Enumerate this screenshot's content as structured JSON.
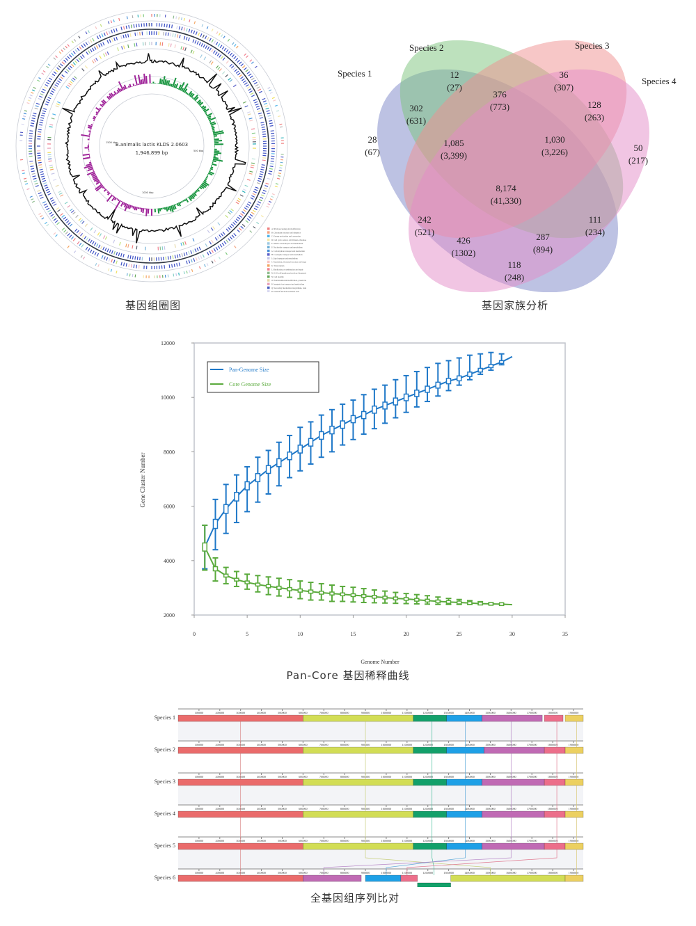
{
  "captions": {
    "circos": "基因组圈图",
    "venn": "基因家族分析",
    "pancore": "Pan-Core 基因稀释曲线",
    "alignment": "全基因组序列比对"
  },
  "circos": {
    "center_title": "B.animalis lactis KLDS 2.0603",
    "center_size": "1,946,899 bp",
    "ticks": [
      "500 kbp",
      "1000 kbp",
      "1500 kbp"
    ],
    "colors": {
      "gc_skew_plus": "#1a9641",
      "gc_skew_minus": "#a0269a",
      "gc_content": "#111111",
      "cds": "#3b4fc4"
    },
    "top_legend": [
      {
        "label": "CDS",
        "color": "#6f7fd6"
      },
      {
        "label": "tRNA",
        "color": "#e07a7a"
      },
      {
        "label": "rRNA",
        "color": "#d97bd0"
      },
      {
        "label": "ORFs",
        "color": "#9aa0a6"
      },
      {
        "label": "GC content",
        "color": "#111111"
      },
      {
        "label": "GC skew+",
        "color": "#1a9641"
      },
      {
        "label": "GC skew-",
        "color": "#a0269a"
      }
    ],
    "cog_legend": [
      {
        "label": "A: RNA processing and modification",
        "color": "#f08080"
      },
      {
        "label": "B: Chromatin structure and dynamics",
        "color": "#f4a582"
      },
      {
        "label": "C: Energy production and conversion",
        "color": "#4fb3e8"
      },
      {
        "label": "D: Cell cycle control, cell division, chromosome partitioning",
        "color": "#f6e8a8"
      },
      {
        "label": "E: Amino acid transport and metabolism",
        "color": "#9ecae1"
      },
      {
        "label": "F: Nucleotide transport and metabolism",
        "color": "#6baed6"
      },
      {
        "label": "G: Carbohydrate transport and metabolism",
        "color": "#4a90d9"
      },
      {
        "label": "H: Coenzyme transport and metabolism",
        "color": "#5a5fc8"
      },
      {
        "label": "I: Lipid transport and metabolism",
        "color": "#c6c6e8"
      },
      {
        "label": "J: Translation, ribosomal structure and biogenesis",
        "color": "#f7c6c6"
      },
      {
        "label": "K: Transcription",
        "color": "#f4a460"
      },
      {
        "label": "L: Replication, recombination and repair",
        "color": "#f08090"
      },
      {
        "label": "M: Cell wall/membrane/envelope biogenesis",
        "color": "#8fbc8f"
      },
      {
        "label": "N: Cell motility",
        "color": "#66a85a"
      },
      {
        "label": "O: Posttranslational modification, protein turnover, chaperones",
        "color": "#e6d8a8"
      },
      {
        "label": "P: Inorganic ion transport and metabolism",
        "color": "#e8a0b8"
      },
      {
        "label": "Q: Secondary metabolites biosynthesis, transport and catabolism",
        "color": "#4b5fc0"
      },
      {
        "label": "R: General function prediction only",
        "color": "#d8d8f0"
      },
      {
        "label": "S: Function unknown",
        "color": "#b0b0b0"
      },
      {
        "label": "T: Signal transduction mechanisms",
        "color": "#7fc97f"
      },
      {
        "label": "U: Intracellular trafficking, secretion, and vesicular transport",
        "color": "#c2e07a"
      },
      {
        "label": "V: Defense mechanisms",
        "color": "#2ab0b8"
      },
      {
        "label": "W: Extracellular structures",
        "color": "#b8e0d8"
      },
      {
        "label": "Y: Nuclear structure",
        "color": "#88d0c8"
      },
      {
        "label": "Z: Cytoskeleton",
        "color": "#f0e060"
      },
      {
        "label": "Unknown",
        "color": "#555a66"
      }
    ]
  },
  "chart_data": [
    {
      "type": "venn",
      "title": "基因家族分析",
      "sets": [
        {
          "name": "Species 1",
          "color": "#7b86c8"
        },
        {
          "name": "Species 2",
          "color": "#7cc47c"
        },
        {
          "name": "Species 3",
          "color": "#ef8f8f"
        },
        {
          "name": "Species 4",
          "color": "#e38cc8"
        }
      ],
      "regions": [
        {
          "sets": [
            "Species 1"
          ],
          "families": "28",
          "genes": "(67)"
        },
        {
          "sets": [
            "Species 2"
          ],
          "families": "12",
          "genes": "(27)"
        },
        {
          "sets": [
            "Species 3"
          ],
          "families": "36",
          "genes": "(307)"
        },
        {
          "sets": [
            "Species 4"
          ],
          "families": "50",
          "genes": "(217)"
        },
        {
          "sets": [
            "Species 1",
            "Species 2"
          ],
          "families": "302",
          "genes": "(631)"
        },
        {
          "sets": [
            "Species 2",
            "Species 3"
          ],
          "families": "376",
          "genes": "(773)"
        },
        {
          "sets": [
            "Species 3",
            "Species 4"
          ],
          "families": "128",
          "genes": "(263)"
        },
        {
          "sets": [
            "Species 1",
            "Species 2",
            "Species 3"
          ],
          "families": "1,085",
          "genes": "(3,399)"
        },
        {
          "sets": [
            "Species 2",
            "Species 3",
            "Species 4"
          ],
          "families": "1,030",
          "genes": "(3,226)"
        },
        {
          "sets": [
            "Species 1",
            "Species 2",
            "Species 3",
            "Species 4"
          ],
          "families": "8,174",
          "genes": "(41,330)"
        },
        {
          "sets": [
            "Species 1",
            "Species 3"
          ],
          "families": "242",
          "genes": "(521)"
        },
        {
          "sets": [
            "Species 2",
            "Species 4"
          ],
          "families": "111",
          "genes": "(234)"
        },
        {
          "sets": [
            "Species 1",
            "Species 3",
            "Species 4"
          ],
          "families": "426",
          "genes": "(1302)"
        },
        {
          "sets": [
            "Species 1",
            "Species 2",
            "Species 4"
          ],
          "families": "287",
          "genes": "(894)"
        },
        {
          "sets": [
            "Species 1",
            "Species 4"
          ],
          "families": "118",
          "genes": "(248)"
        }
      ]
    },
    {
      "type": "line",
      "title": "Pan-Core 基因稀释曲线",
      "xlabel": "Genome Number",
      "ylabel": "Gene Cluster Number",
      "xlim": [
        0,
        35
      ],
      "ylim": [
        2000,
        12000
      ],
      "xticks": [
        0,
        5,
        10,
        15,
        20,
        25,
        30,
        35
      ],
      "yticks": [
        2000,
        4000,
        6000,
        8000,
        10000,
        12000
      ],
      "legend_position": "top-left",
      "x": [
        1,
        2,
        3,
        4,
        5,
        6,
        7,
        8,
        9,
        10,
        11,
        12,
        13,
        14,
        15,
        16,
        17,
        18,
        19,
        20,
        21,
        22,
        23,
        24,
        25,
        26,
        27,
        28,
        29,
        30
      ],
      "series": [
        {
          "name": "Pan-Genome Size",
          "color": "#1f78c8",
          "values": [
            4500,
            5350,
            5900,
            6350,
            6750,
            7050,
            7350,
            7600,
            7850,
            8100,
            8350,
            8600,
            8800,
            9000,
            9200,
            9350,
            9550,
            9700,
            9850,
            10000,
            10150,
            10300,
            10450,
            10600,
            10700,
            10850,
            11000,
            11150,
            11300,
            11500
          ],
          "err_low": [
            3700,
            4400,
            5000,
            5400,
            5800,
            6150,
            6450,
            6750,
            7050,
            7300,
            7550,
            7800,
            8000,
            8250,
            8450,
            8650,
            8850,
            9050,
            9250,
            9450,
            9650,
            9850,
            10050,
            10250,
            10450,
            10650,
            10850,
            11000,
            11200,
            11500
          ],
          "err_high": [
            5300,
            6250,
            6800,
            7150,
            7450,
            7800,
            8050,
            8350,
            8600,
            8900,
            9100,
            9350,
            9550,
            9750,
            9900,
            10100,
            10300,
            10450,
            10650,
            10800,
            10950,
            11100,
            11250,
            11350,
            11450,
            11550,
            11600,
            11650,
            11600,
            11500
          ]
        },
        {
          "name": "Core Genome Size",
          "color": "#5aaa3c",
          "values": [
            4500,
            3700,
            3450,
            3300,
            3200,
            3120,
            3060,
            3000,
            2950,
            2900,
            2860,
            2820,
            2790,
            2760,
            2730,
            2700,
            2670,
            2640,
            2610,
            2590,
            2560,
            2530,
            2500,
            2480,
            2460,
            2440,
            2420,
            2410,
            2400,
            2380
          ],
          "err_low": [
            3650,
            3250,
            3150,
            3050,
            2950,
            2850,
            2750,
            2700,
            2650,
            2600,
            2550,
            2550,
            2500,
            2500,
            2480,
            2460,
            2450,
            2440,
            2430,
            2420,
            2410,
            2400,
            2390,
            2390,
            2390,
            2390,
            2390,
            2390,
            2390,
            2380
          ],
          "err_high": [
            5300,
            4100,
            3750,
            3600,
            3500,
            3450,
            3400,
            3350,
            3300,
            3250,
            3200,
            3150,
            3100,
            3050,
            3020,
            2970,
            2920,
            2880,
            2830,
            2790,
            2750,
            2710,
            2660,
            2610,
            2570,
            2530,
            2490,
            2450,
            2410,
            2380
          ]
        }
      ]
    }
  ],
  "alignment": {
    "ticks": [
      "100000",
      "200000",
      "300000",
      "400000",
      "500000",
      "600000",
      "700000",
      "800000",
      "900000",
      "1000000",
      "1100000",
      "1200000",
      "1300000",
      "1400000",
      "1500000",
      "1600000",
      "1700000",
      "1800000",
      "1900000"
    ],
    "block_colors": {
      "red": "#ea6b6b",
      "yellow": "#d2dd55",
      "green": "#13a06a",
      "blue": "#1ea0e6",
      "purple": "#c06ab4",
      "pink": "#ec6e8a",
      "gold": "#ecd060"
    },
    "tracks": [
      {
        "label": "Species 1",
        "blocks": [
          [
            "red",
            0,
            600000
          ],
          [
            "yellow",
            600000,
            1130000
          ],
          [
            "green",
            1130000,
            1290000
          ],
          [
            "blue",
            1290000,
            1460000
          ],
          [
            "purple",
            1460000,
            1750000
          ],
          [
            "pink",
            1760000,
            1850000
          ],
          [
            "gold",
            1860000,
            1946899
          ]
        ]
      },
      {
        "label": "Species 2",
        "blocks": [
          [
            "red",
            0,
            600000
          ],
          [
            "yellow",
            600000,
            1130000
          ],
          [
            "green",
            1130000,
            1290000
          ],
          [
            "blue",
            1290000,
            1470000
          ],
          [
            "purple",
            1470000,
            1760000
          ],
          [
            "pink",
            1760000,
            1860000
          ],
          [
            "gold",
            1860000,
            1946899
          ]
        ]
      },
      {
        "label": "Species 3",
        "blocks": [
          [
            "red",
            0,
            600000
          ],
          [
            "yellow",
            600000,
            1130000
          ],
          [
            "green",
            1130000,
            1290000
          ],
          [
            "blue",
            1290000,
            1460000
          ],
          [
            "purple",
            1460000,
            1760000
          ],
          [
            "pink",
            1760000,
            1860000
          ],
          [
            "gold",
            1860000,
            1946899
          ]
        ]
      },
      {
        "label": "Species 4",
        "blocks": [
          [
            "red",
            0,
            600000
          ],
          [
            "yellow",
            600000,
            1130000
          ],
          [
            "green",
            1130000,
            1290000
          ],
          [
            "blue",
            1290000,
            1460000
          ],
          [
            "purple",
            1460000,
            1760000
          ],
          [
            "pink",
            1760000,
            1860000
          ],
          [
            "gold",
            1860000,
            1946899
          ]
        ]
      },
      {
        "label": "Species 5",
        "blocks": [
          [
            "red",
            0,
            600000
          ],
          [
            "yellow",
            600000,
            1130000
          ],
          [
            "green",
            1130000,
            1290000
          ],
          [
            "blue",
            1290000,
            1460000
          ],
          [
            "purple",
            1460000,
            1760000
          ],
          [
            "pink",
            1760000,
            1860000
          ],
          [
            "gold",
            1860000,
            1946899
          ]
        ]
      },
      {
        "label": "Species 6",
        "blocks": [
          [
            "red",
            0,
            600000
          ],
          [
            "purple",
            600000,
            880000
          ],
          [
            "blue",
            900000,
            1070000
          ],
          [
            "pink",
            1070000,
            1150000
          ],
          [
            "green",
            1150000,
            1310000,
            "inverted"
          ],
          [
            "yellow",
            1310000,
            1860000
          ],
          [
            "gold",
            1860000,
            1946899
          ]
        ]
      }
    ]
  }
}
